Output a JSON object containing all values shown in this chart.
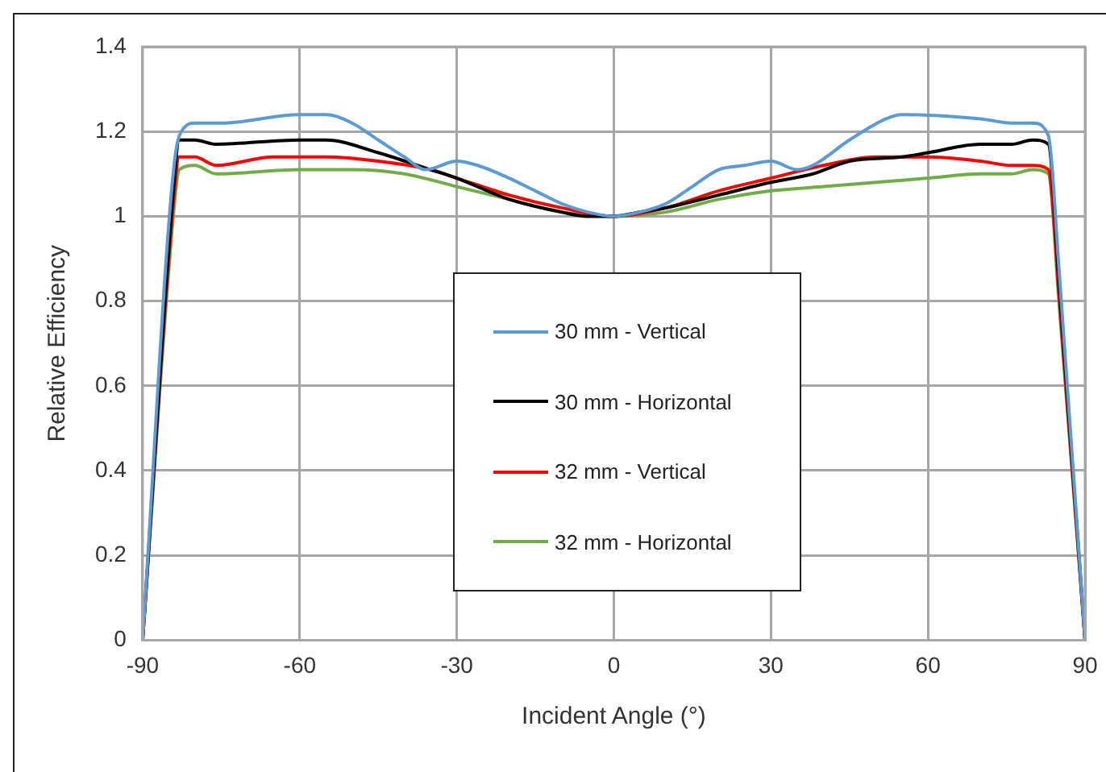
{
  "chart_data": {
    "type": "line",
    "xlabel": "Incident Angle (°)",
    "ylabel": "Relative Efficiency",
    "xlim": [
      -90,
      90
    ],
    "xticks": [
      -90,
      -60,
      -30,
      0,
      30,
      60,
      90
    ],
    "ylim": [
      0,
      1.4
    ],
    "yticks": [
      0,
      0.2,
      0.4,
      0.6,
      0.8,
      1,
      1.2,
      1.4
    ],
    "grid": true,
    "legend": "bottom",
    "marker": "none",
    "line_style": "solid",
    "series": [
      {
        "name": "30 mm - Vertical",
        "color": "#5b9bd5",
        "x": [
          -90,
          -84,
          -82,
          -80,
          -75,
          -60,
          -55,
          -50,
          -45,
          -40,
          -36,
          -30,
          -26,
          -20,
          -15,
          -10,
          -5,
          0,
          5,
          10,
          15,
          20,
          25,
          30,
          35,
          38,
          45,
          52,
          55,
          70,
          76,
          80,
          83,
          85,
          90
        ],
        "values": [
          0,
          1.12,
          1.21,
          1.22,
          1.22,
          1.24,
          1.24,
          1.22,
          1.18,
          1.14,
          1.11,
          1.13,
          1.12,
          1.09,
          1.06,
          1.03,
          1.01,
          1,
          1.01,
          1.03,
          1.07,
          1.11,
          1.12,
          1.13,
          1.11,
          1.12,
          1.18,
          1.23,
          1.24,
          1.23,
          1.22,
          1.22,
          1.19,
          0.88,
          0
        ]
      },
      {
        "name": "30 mm - Horizontal",
        "color": "#000000",
        "x": [
          -90,
          -84,
          -83,
          -80,
          -76,
          -60,
          -55,
          -45,
          -35,
          -30,
          -20,
          -10,
          -5,
          0,
          5,
          10,
          20,
          30,
          38,
          45,
          55,
          60,
          70,
          76,
          80,
          83,
          85,
          90
        ],
        "values": [
          0,
          1.08,
          1.18,
          1.18,
          1.17,
          1.18,
          1.18,
          1.15,
          1.11,
          1.09,
          1.04,
          1.01,
          1,
          1,
          1.01,
          1.02,
          1.05,
          1.08,
          1.1,
          1.13,
          1.14,
          1.15,
          1.17,
          1.17,
          1.18,
          1.17,
          0.85,
          0
        ]
      },
      {
        "name": "32 mm - Vertical",
        "color": "#ff0000",
        "x": [
          -90,
          -84,
          -83,
          -80,
          -76,
          -65,
          -55,
          -45,
          -35,
          -30,
          -20,
          -10,
          0,
          10,
          20,
          30,
          40,
          50,
          60,
          70,
          76,
          80,
          83,
          85,
          90
        ],
        "values": [
          0,
          1.05,
          1.14,
          1.14,
          1.12,
          1.14,
          1.14,
          1.13,
          1.11,
          1.09,
          1.05,
          1.02,
          1,
          1.02,
          1.06,
          1.09,
          1.12,
          1.14,
          1.14,
          1.13,
          1.12,
          1.12,
          1.11,
          0.82,
          0
        ]
      },
      {
        "name": "32 mm - Horizontal",
        "color": "#70ad47",
        "x": [
          -90,
          -84,
          -83,
          -80,
          -76,
          -60,
          -50,
          -40,
          -30,
          -20,
          -10,
          0,
          10,
          20,
          30,
          40,
          50,
          60,
          70,
          76,
          80,
          83,
          85,
          90
        ],
        "values": [
          0,
          1.02,
          1.11,
          1.12,
          1.1,
          1.11,
          1.11,
          1.1,
          1.07,
          1.04,
          1.01,
          1,
          1.01,
          1.04,
          1.06,
          1.07,
          1.08,
          1.09,
          1.1,
          1.1,
          1.11,
          1.1,
          0.8,
          0
        ]
      }
    ]
  }
}
